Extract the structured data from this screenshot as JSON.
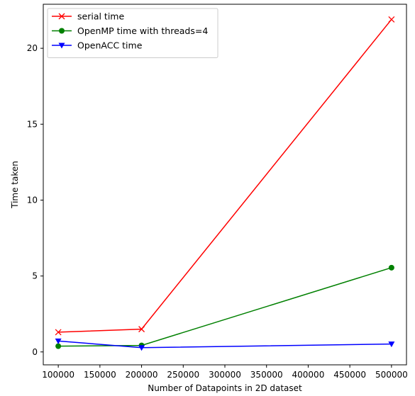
{
  "chart_data": {
    "type": "line",
    "title": "",
    "xlabel": "Number of Datapoints in 2D dataset",
    "ylabel": "Time taken",
    "x": [
      100000,
      200000,
      500000
    ],
    "xlim": [
      82000,
      518000
    ],
    "ylim": [
      -0.85,
      22.9
    ],
    "xticks": [
      100000,
      150000,
      200000,
      250000,
      300000,
      350000,
      400000,
      450000,
      500000
    ],
    "yticks": [
      0,
      5,
      10,
      15,
      20
    ],
    "grid": false,
    "legend": "top-left",
    "series": [
      {
        "name": "serial time",
        "color": "#ff0000",
        "marker": "x",
        "values": [
          1.3,
          1.5,
          21.9
        ]
      },
      {
        "name": "OpenMP time with threads=4",
        "color": "#008000",
        "marker": "circle",
        "values": [
          0.38,
          0.43,
          5.55
        ]
      },
      {
        "name": "OpenACC time",
        "color": "#0000ff",
        "marker": "triangle-down",
        "values": [
          0.72,
          0.28,
          0.52
        ]
      }
    ]
  }
}
